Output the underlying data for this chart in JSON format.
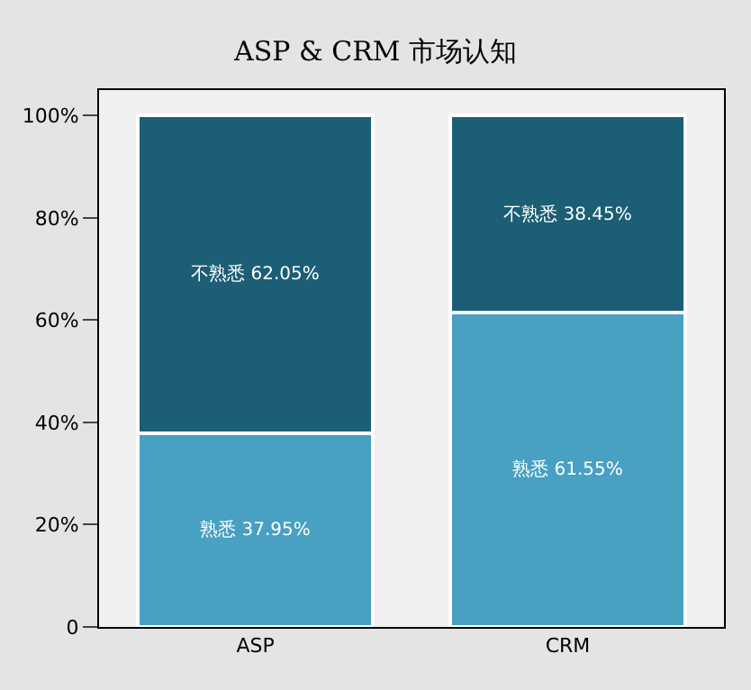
{
  "chart_data": {
    "type": "bar",
    "title": "ASP & CRM 市场认知",
    "categories": [
      "ASP",
      "CRM"
    ],
    "stacked": true,
    "series": [
      {
        "color": "#48a0c2",
        "values": [
          37.95,
          61.55
        ],
        "value_labels": [
          "熟悉 37.95%",
          "熟悉 61.55%"
        ]
      },
      {
        "color": "#1b5e75",
        "values": [
          62.05,
          38.45
        ],
        "value_labels": [
          "不熟悉 62.05%",
          "不熟悉 38.45%"
        ]
      }
    ],
    "ylim": [
      0,
      105
    ],
    "yticks": [
      0,
      {
        "value": 20,
        "label": "20%"
      },
      {
        "value": 40,
        "label": "40%"
      },
      {
        "value": 60,
        "label": "60%"
      },
      {
        "value": 80,
        "label": "80%"
      },
      {
        "value": 100,
        "label": "100%"
      }
    ],
    "grid": false,
    "legend": false
  }
}
